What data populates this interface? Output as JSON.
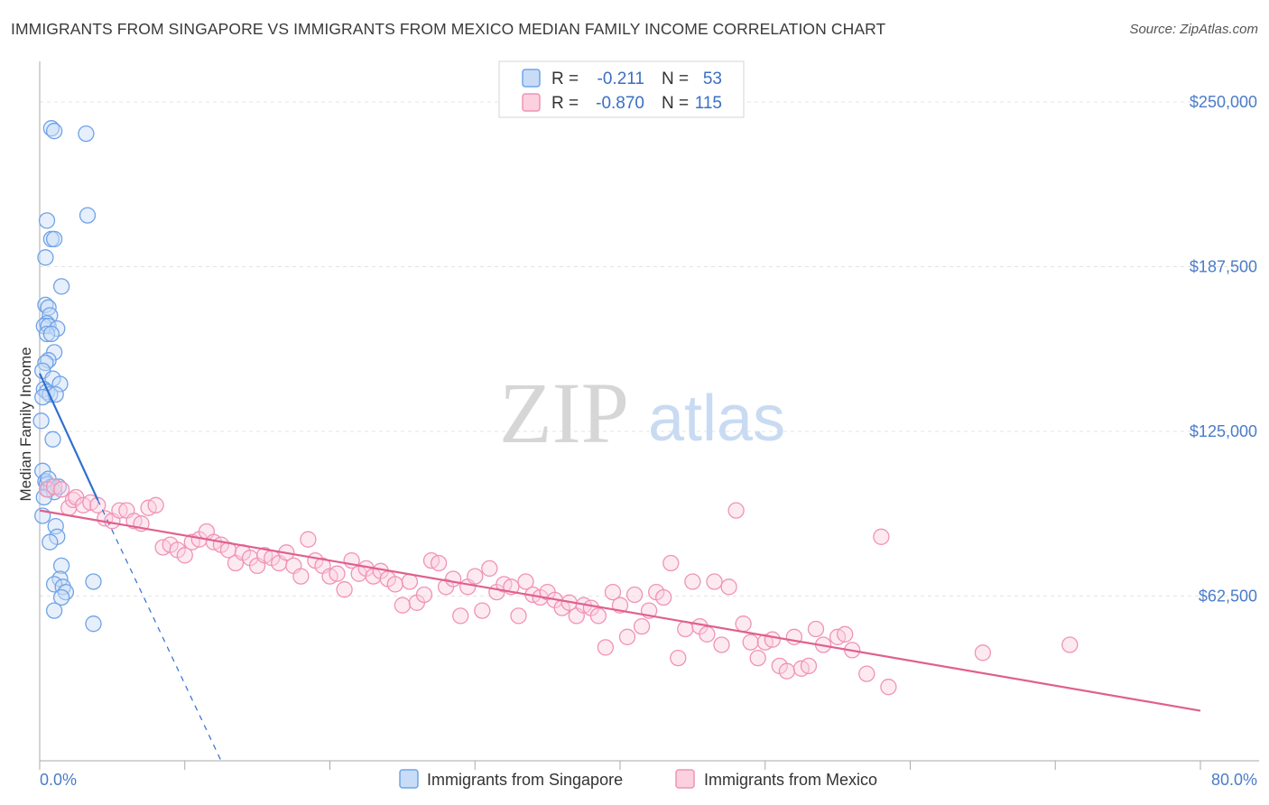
{
  "title": "IMMIGRANTS FROM SINGAPORE VS IMMIGRANTS FROM MEXICO MEDIAN FAMILY INCOME CORRELATION CHART",
  "source": "Source: ZipAtlas.com",
  "watermark": {
    "zip": "ZIP",
    "atlas": "atlas"
  },
  "chart_data": {
    "type": "scatter",
    "title": "IMMIGRANTS FROM SINGAPORE VS IMMIGRANTS FROM MEXICO MEDIAN FAMILY INCOME CORRELATION CHART",
    "xlabel": "",
    "ylabel": "Median Family Income",
    "xlim": [
      0,
      80
    ],
    "ylim": [
      0,
      262000
    ],
    "x_tick_labels": {
      "min": "0.0%",
      "max": "80.0%"
    },
    "y_ticks": [
      {
        "value": 62500,
        "label": "$62,500"
      },
      {
        "value": 125000,
        "label": "$125,000"
      },
      {
        "value": 187500,
        "label": "$187,500"
      },
      {
        "value": 250000,
        "label": "$250,000"
      }
    ],
    "legend_stats": [
      {
        "r_label": "R =",
        "r_value": "-0.211",
        "n_label": "N =",
        "n_value": "53"
      },
      {
        "r_label": "R =",
        "r_value": "-0.870",
        "n_label": "N =",
        "n_value": "115"
      }
    ],
    "series": [
      {
        "name": "Immigrants from Singapore",
        "color": "#6fa3e8",
        "line_color": "#2f6fd0",
        "trend": {
          "x0": 0,
          "y0": 147000,
          "x1": 4,
          "y1": 99000,
          "dash_x1": 12.5,
          "dash_y1": 0
        },
        "points": [
          [
            0.8,
            240000
          ],
          [
            1.0,
            239000
          ],
          [
            3.2,
            238000
          ],
          [
            3.3,
            207000
          ],
          [
            0.5,
            205000
          ],
          [
            0.8,
            198000
          ],
          [
            1.0,
            198000
          ],
          [
            0.4,
            191000
          ],
          [
            1.5,
            180000
          ],
          [
            0.4,
            173000
          ],
          [
            0.6,
            172000
          ],
          [
            0.7,
            169000
          ],
          [
            0.5,
            166000
          ],
          [
            0.3,
            165000
          ],
          [
            0.6,
            165000
          ],
          [
            1.2,
            164000
          ],
          [
            0.5,
            162000
          ],
          [
            0.8,
            162000
          ],
          [
            1.0,
            155000
          ],
          [
            0.6,
            152000
          ],
          [
            0.4,
            151000
          ],
          [
            0.2,
            148000
          ],
          [
            0.9,
            145000
          ],
          [
            1.4,
            143000
          ],
          [
            0.3,
            141000
          ],
          [
            0.5,
            140000
          ],
          [
            0.7,
            139000
          ],
          [
            1.1,
            139000
          ],
          [
            0.2,
            138000
          ],
          [
            0.1,
            129000
          ],
          [
            0.9,
            122000
          ],
          [
            0.2,
            110000
          ],
          [
            0.4,
            106000
          ],
          [
            0.5,
            105000
          ],
          [
            0.8,
            104000
          ],
          [
            0.6,
            103000
          ],
          [
            1.0,
            102000
          ],
          [
            0.2,
            93000
          ],
          [
            1.1,
            89000
          ],
          [
            1.2,
            85000
          ],
          [
            0.7,
            83000
          ],
          [
            1.5,
            74000
          ],
          [
            1.4,
            69000
          ],
          [
            3.7,
            68000
          ],
          [
            1.0,
            67000
          ],
          [
            1.6,
            66000
          ],
          [
            1.8,
            64000
          ],
          [
            1.5,
            62000
          ],
          [
            1.0,
            57000
          ],
          [
            3.7,
            52000
          ],
          [
            0.3,
            100000
          ],
          [
            0.6,
            107000
          ],
          [
            1.3,
            104000
          ]
        ]
      },
      {
        "name": "Immigrants from Mexico",
        "color": "#f093b5",
        "line_color": "#e0608e",
        "trend": {
          "x0": 0,
          "y0": 95000,
          "x1": 80,
          "y1": 19000
        },
        "points": [
          [
            0.5,
            103000
          ],
          [
            1.0,
            104000
          ],
          [
            1.5,
            103000
          ],
          [
            2.0,
            96000
          ],
          [
            2.3,
            99000
          ],
          [
            2.5,
            100000
          ],
          [
            3.0,
            97000
          ],
          [
            3.5,
            98000
          ],
          [
            4.0,
            97000
          ],
          [
            4.5,
            92000
          ],
          [
            5.0,
            91000
          ],
          [
            5.5,
            95000
          ],
          [
            6.0,
            95000
          ],
          [
            6.5,
            91000
          ],
          [
            7.0,
            90000
          ],
          [
            7.5,
            96000
          ],
          [
            8.0,
            97000
          ],
          [
            8.5,
            81000
          ],
          [
            9.0,
            82000
          ],
          [
            9.5,
            80000
          ],
          [
            10.0,
            78000
          ],
          [
            10.5,
            83000
          ],
          [
            11.0,
            84000
          ],
          [
            11.5,
            87000
          ],
          [
            12.0,
            83000
          ],
          [
            12.5,
            82000
          ],
          [
            13.0,
            80000
          ],
          [
            13.5,
            75000
          ],
          [
            14.0,
            79000
          ],
          [
            14.5,
            77000
          ],
          [
            15.0,
            74000
          ],
          [
            15.5,
            78000
          ],
          [
            16.0,
            77000
          ],
          [
            16.5,
            75000
          ],
          [
            17.0,
            79000
          ],
          [
            17.5,
            74000
          ],
          [
            18.0,
            70000
          ],
          [
            18.5,
            84000
          ],
          [
            19.0,
            76000
          ],
          [
            19.5,
            74000
          ],
          [
            20.0,
            70000
          ],
          [
            20.5,
            71000
          ],
          [
            21.0,
            65000
          ],
          [
            21.5,
            76000
          ],
          [
            22.0,
            71000
          ],
          [
            22.5,
            73000
          ],
          [
            23.0,
            70000
          ],
          [
            23.5,
            72000
          ],
          [
            24.0,
            69000
          ],
          [
            24.5,
            67000
          ],
          [
            25.0,
            59000
          ],
          [
            25.5,
            68000
          ],
          [
            26.0,
            60000
          ],
          [
            26.5,
            63000
          ],
          [
            27.0,
            76000
          ],
          [
            27.5,
            75000
          ],
          [
            28.0,
            66000
          ],
          [
            28.5,
            69000
          ],
          [
            29.0,
            55000
          ],
          [
            29.5,
            66000
          ],
          [
            30.0,
            70000
          ],
          [
            30.5,
            57000
          ],
          [
            31.0,
            73000
          ],
          [
            31.5,
            64000
          ],
          [
            32.0,
            67000
          ],
          [
            32.5,
            66000
          ],
          [
            33.0,
            55000
          ],
          [
            33.5,
            68000
          ],
          [
            34.0,
            63000
          ],
          [
            34.5,
            62000
          ],
          [
            35.0,
            64000
          ],
          [
            35.5,
            61000
          ],
          [
            36.0,
            58000
          ],
          [
            36.5,
            60000
          ],
          [
            37.0,
            55000
          ],
          [
            37.5,
            59000
          ],
          [
            38.0,
            58000
          ],
          [
            38.5,
            55000
          ],
          [
            39.0,
            43000
          ],
          [
            39.5,
            64000
          ],
          [
            40.0,
            59000
          ],
          [
            40.5,
            47000
          ],
          [
            41.0,
            63000
          ],
          [
            41.5,
            51000
          ],
          [
            42.0,
            57000
          ],
          [
            42.5,
            64000
          ],
          [
            43.0,
            62000
          ],
          [
            43.5,
            75000
          ],
          [
            44.0,
            39000
          ],
          [
            44.5,
            50000
          ],
          [
            45.0,
            68000
          ],
          [
            45.5,
            51000
          ],
          [
            46.0,
            48000
          ],
          [
            46.5,
            68000
          ],
          [
            47.0,
            44000
          ],
          [
            47.5,
            66000
          ],
          [
            48.0,
            95000
          ],
          [
            48.5,
            52000
          ],
          [
            49.0,
            45000
          ],
          [
            49.5,
            39000
          ],
          [
            50.0,
            45000
          ],
          [
            50.5,
            46000
          ],
          [
            51.0,
            36000
          ],
          [
            51.5,
            34000
          ],
          [
            52.0,
            47000
          ],
          [
            52.5,
            35000
          ],
          [
            53.0,
            36000
          ],
          [
            53.5,
            50000
          ],
          [
            54.0,
            44000
          ],
          [
            55.0,
            47000
          ],
          [
            55.5,
            48000
          ],
          [
            56.0,
            42000
          ],
          [
            57.0,
            33000
          ],
          [
            58.0,
            85000
          ],
          [
            58.5,
            28000
          ],
          [
            65.0,
            41000
          ],
          [
            71.0,
            44000
          ]
        ]
      }
    ]
  }
}
